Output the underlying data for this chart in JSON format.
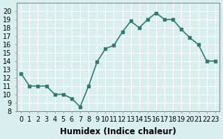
{
  "x": [
    0,
    1,
    2,
    3,
    4,
    5,
    6,
    7,
    8,
    9,
    10,
    11,
    12,
    13,
    14,
    15,
    16,
    17,
    18,
    19,
    20,
    21,
    22,
    23
  ],
  "y": [
    12.5,
    11,
    11,
    11,
    10,
    10,
    9.5,
    8.5,
    11,
    13.9,
    15.5,
    15.9,
    17.5,
    18.8,
    18,
    19,
    19.8,
    19,
    19,
    17.8,
    16.8,
    16,
    14,
    14
  ],
  "xlabel": "Humidex (Indice chaleur)",
  "ylim": [
    8,
    21
  ],
  "xlim": [
    -0.5,
    23.5
  ],
  "yticks": [
    8,
    9,
    10,
    11,
    12,
    13,
    14,
    15,
    16,
    17,
    18,
    19,
    20
  ],
  "xticks": [
    0,
    1,
    2,
    3,
    4,
    5,
    6,
    7,
    8,
    9,
    10,
    11,
    12,
    13,
    14,
    15,
    16,
    17,
    18,
    19,
    20,
    21,
    22,
    23
  ],
  "xtick_labels": [
    "0",
    "1",
    "2",
    "3",
    "4",
    "5",
    "6",
    "7",
    "8",
    "9",
    "10",
    "11",
    "12",
    "13",
    "14",
    "15",
    "16",
    "17",
    "18",
    "19",
    "20",
    "21",
    "22",
    "23"
  ],
  "line_color": "#2e7d6e",
  "marker": "s",
  "marker_size": 3,
  "bg_color": "#d9efef",
  "grid_color": "#ffffff",
  "tick_fontsize": 7,
  "xlabel_fontsize": 8.5
}
